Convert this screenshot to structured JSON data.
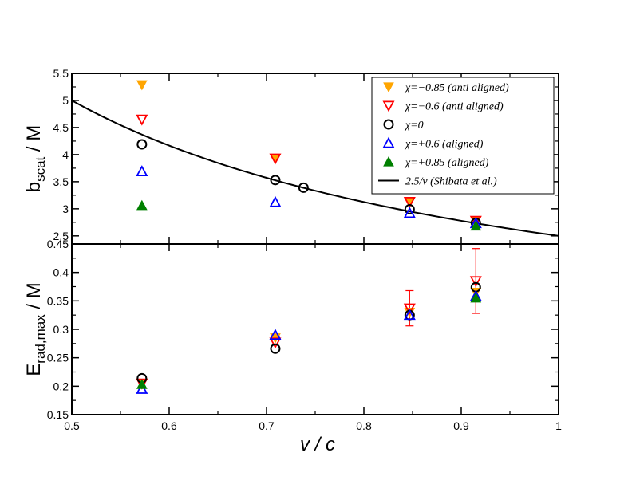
{
  "chart_data": {
    "type": "scatter",
    "xlabel": "v / c",
    "xlim": [
      0.5,
      1.0
    ],
    "xticks": [
      0.5,
      0.6,
      0.7,
      0.8,
      0.9,
      1.0
    ],
    "xtick_labels": [
      "0.5",
      "0.6",
      "0.7",
      "0.8",
      "0.9",
      "1"
    ],
    "panels": [
      {
        "id": "top",
        "ylabel_main": "b",
        "ylabel_sub": "scat",
        "ylabel_rest": " / M",
        "ylim": [
          2.35,
          5.5
        ],
        "yticks": [
          2.5,
          3,
          3.5,
          4,
          4.5,
          5,
          5.5
        ],
        "ytick_labels": [
          "2.5",
          "3",
          "3.5",
          "4",
          "4.5",
          "5",
          "5.5"
        ],
        "legend_position": "top-right",
        "series": [
          {
            "name": "χ=−0.85  (anti aligned)",
            "marker": "down-filled",
            "color": "#FFA500",
            "x": [
              0.572,
              0.709,
              0.847,
              0.915
            ],
            "y": [
              5.29,
              3.93,
              3.12,
              2.77
            ]
          },
          {
            "name": "χ=−0.6  (anti aligned)",
            "marker": "down-open",
            "color": "#FF0000",
            "x": [
              0.572,
              0.709,
              0.847,
              0.915
            ],
            "y": [
              4.65,
              3.93,
              3.13,
              2.78
            ]
          },
          {
            "name": "χ=0",
            "marker": "circle-open",
            "color": "#000000",
            "x": [
              0.572,
              0.709,
              0.738,
              0.847,
              0.915
            ],
            "y": [
              4.19,
              3.53,
              3.39,
              2.99,
              2.74
            ]
          },
          {
            "name": "χ=+0.6  (aligned)",
            "marker": "up-open",
            "color": "#0000FF",
            "x": [
              0.572,
              0.709,
              0.847,
              0.915
            ],
            "y": [
              3.69,
              3.12,
              2.92,
              2.73
            ]
          },
          {
            "name": "χ=+0.85  (aligned)",
            "marker": "up-filled",
            "color": "#008000",
            "x": [
              0.572,
              0.915
            ],
            "y": [
              3.06,
              2.68
            ]
          }
        ],
        "curve": {
          "name": "2.5/v  (Shibata et al.)",
          "formula": "2.5/v",
          "coef": 2.5,
          "x_range": [
            0.5,
            1.0
          ],
          "color": "#000000"
        }
      },
      {
        "id": "bottom",
        "ylabel_main": "E",
        "ylabel_sub": "rad,max",
        "ylabel_rest": " / M",
        "ylim": [
          0.15,
          0.45
        ],
        "yticks": [
          0.15,
          0.2,
          0.25,
          0.3,
          0.35,
          0.4,
          0.45
        ],
        "ytick_labels": [
          "0.15",
          "0.2",
          "0.25",
          "0.3",
          "0.35",
          "0.4",
          "0.45"
        ],
        "series": [
          {
            "name": "χ=−0.85  (anti aligned)",
            "marker": "down-filled",
            "color": "#FFA500",
            "x": [
              0.572,
              0.709,
              0.847,
              0.915
            ],
            "y": [
              0.205,
              0.285,
              0.33,
              0.365
            ]
          },
          {
            "name": "χ=−0.6  (anti aligned)",
            "marker": "down-open",
            "color": "#FF0000",
            "x": [
              0.572,
              0.709,
              0.847,
              0.915
            ],
            "y": [
              0.205,
              0.277,
              0.337,
              0.385
            ],
            "err": [
              0,
              0,
              0.031,
              0.057
            ]
          },
          {
            "name": "χ=0",
            "marker": "circle-open",
            "color": "#000000",
            "x": [
              0.572,
              0.709,
              0.847,
              0.915
            ],
            "y": [
              0.214,
              0.266,
              0.325,
              0.374
            ]
          },
          {
            "name": "χ=+0.6  (aligned)",
            "marker": "up-open",
            "color": "#0000FF",
            "x": [
              0.572,
              0.709,
              0.847,
              0.915
            ],
            "y": [
              0.195,
              0.29,
              0.325,
              0.358
            ]
          },
          {
            "name": "χ=+0.85  (aligned)",
            "marker": "up-filled",
            "color": "#008000",
            "x": [
              0.572,
              0.915
            ],
            "y": [
              0.203,
              0.355
            ]
          }
        ]
      }
    ]
  }
}
